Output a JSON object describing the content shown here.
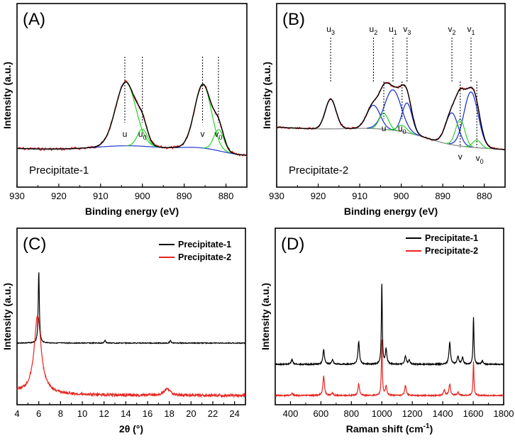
{
  "chart_data": [
    {
      "id": "A",
      "type": "line",
      "panel_label": "(A)",
      "sample_label": "Precipitate-1",
      "xlabel": "Binding energy (eV)",
      "ylabel": "Intensity (a.u.)",
      "xlim": [
        930,
        875
      ],
      "x_ticks": [
        930,
        920,
        910,
        900,
        890,
        880
      ],
      "series": [
        {
          "name": "raw",
          "color": "#e8231f"
        },
        {
          "name": "fit-envelope",
          "color": "#000000"
        },
        {
          "name": "background",
          "color": "#2437d6"
        },
        {
          "name": "component-u",
          "color": "#2bd12b",
          "center": 904.0
        },
        {
          "name": "component-u0",
          "color": "#2bd12b",
          "center": 900.0
        },
        {
          "name": "component-v",
          "color": "#2bd12b",
          "center": 885.5
        },
        {
          "name": "component-v0",
          "color": "#2bd12b",
          "center": 881.7
        }
      ],
      "peak_markers": [
        {
          "name": "u",
          "sub": "",
          "x": 904.2
        },
        {
          "name": "u",
          "sub": "0",
          "x": 900.0
        },
        {
          "name": "v",
          "sub": "",
          "x": 885.6
        },
        {
          "name": "v",
          "sub": "0",
          "x": 881.8
        }
      ]
    },
    {
      "id": "B",
      "type": "line",
      "panel_label": "(B)",
      "sample_label": "Precipitate-2",
      "xlabel": "Binding energy (eV)",
      "ylabel": "Intensity (a.u.)",
      "xlim": [
        930,
        875
      ],
      "x_ticks": [
        930,
        920,
        910,
        900,
        890,
        880
      ],
      "series": [
        {
          "name": "raw",
          "color": "#e8231f"
        },
        {
          "name": "fit-envelope",
          "color": "#000000"
        },
        {
          "name": "background",
          "color": "#8c8c8c"
        },
        {
          "name": "Ce4+ components",
          "color": "#2437d6"
        },
        {
          "name": "Ce3+ components",
          "color": "#2bd12b"
        }
      ],
      "top_markers": [
        {
          "name": "u",
          "sub": "3",
          "x": 917.0
        },
        {
          "name": "u",
          "sub": "2",
          "x": 906.7
        },
        {
          "name": "u",
          "sub": "1",
          "x": 902.0
        },
        {
          "name": "v",
          "sub": "3",
          "x": 898.6
        },
        {
          "name": "v",
          "sub": "2",
          "x": 887.8
        },
        {
          "name": "v",
          "sub": "1",
          "x": 883.2
        }
      ],
      "bottom_markers": [
        {
          "name": "u",
          "sub": "",
          "x": 904.2
        },
        {
          "name": "u",
          "sub": "0",
          "x": 899.8
        },
        {
          "name": "v",
          "sub": "",
          "x": 885.8
        },
        {
          "name": "v",
          "sub": "0",
          "x": 881.8
        }
      ]
    },
    {
      "id": "C",
      "type": "line",
      "panel_label": "(C)",
      "xlabel": "2θ (°)",
      "ylabel": "Intensity (a.u.)",
      "xlim": [
        4,
        25
      ],
      "x_ticks": [
        4,
        6,
        8,
        10,
        12,
        14,
        16,
        18,
        20,
        22,
        24
      ],
      "legend": "top-right",
      "series": [
        {
          "name": "Precipitate-1",
          "color": "#000000",
          "peaks": [
            {
              "x": 6.0,
              "rel": 1.0
            },
            {
              "x": 12.1,
              "rel": 0.04
            },
            {
              "x": 18.1,
              "rel": 0.04
            }
          ]
        },
        {
          "name": "Precipitate-2",
          "color": "#e8231f",
          "peaks": [
            {
              "x": 5.9,
              "rel": 1.0
            },
            {
              "x": 17.8,
              "rel": 0.08
            }
          ]
        }
      ]
    },
    {
      "id": "D",
      "type": "line",
      "panel_label": "(D)",
      "xlabel": "Raman shift (cm",
      "xlabel_sup": "-1",
      "xlabel_end": ")",
      "ylabel": "Intensity (a.u.)",
      "xlim": [
        300,
        1800
      ],
      "x_ticks": [
        400,
        600,
        800,
        1000,
        1200,
        1400,
        1600,
        1800
      ],
      "legend": "top-right",
      "series": [
        {
          "name": "Precipitate-1",
          "color": "#000000",
          "peaks": [
            {
              "x": 410,
              "rel": 0.06
            },
            {
              "x": 618,
              "rel": 0.18
            },
            {
              "x": 676,
              "rel": 0.06
            },
            {
              "x": 848,
              "rel": 0.28
            },
            {
              "x": 1000,
              "rel": 1.0
            },
            {
              "x": 1028,
              "rel": 0.18
            },
            {
              "x": 1155,
              "rel": 0.1
            },
            {
              "x": 1180,
              "rel": 0.05
            },
            {
              "x": 1446,
              "rel": 0.27
            },
            {
              "x": 1500,
              "rel": 0.1
            },
            {
              "x": 1530,
              "rel": 0.08
            },
            {
              "x": 1602,
              "rel": 0.58
            },
            {
              "x": 1660,
              "rel": 0.04
            }
          ]
        },
        {
          "name": "Precipitate-2",
          "color": "#e8231f",
          "peaks": [
            {
              "x": 410,
              "rel": 0.04
            },
            {
              "x": 618,
              "rel": 0.34
            },
            {
              "x": 676,
              "rel": 0.04
            },
            {
              "x": 848,
              "rel": 0.2
            },
            {
              "x": 1000,
              "rel": 1.0
            },
            {
              "x": 1028,
              "rel": 0.16
            },
            {
              "x": 1155,
              "rel": 0.18
            },
            {
              "x": 1410,
              "rel": 0.1
            },
            {
              "x": 1446,
              "rel": 0.2
            },
            {
              "x": 1500,
              "rel": 0.06
            },
            {
              "x": 1602,
              "rel": 0.6
            }
          ]
        }
      ]
    }
  ]
}
